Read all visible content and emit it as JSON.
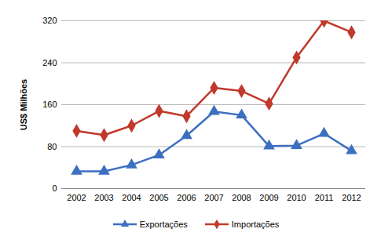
{
  "chart_data": {
    "type": "line",
    "y_label": "US$ Milhões",
    "categories": [
      "2002",
      "2003",
      "2004",
      "2005",
      "2006",
      "2007",
      "2008",
      "2009",
      "2010",
      "2011",
      "2012"
    ],
    "series": [
      {
        "name": "Exportações",
        "color": "#3d6fc0",
        "marker": "triangle",
        "line_style": "solid",
        "values": [
          33,
          33,
          45,
          64,
          101,
          147,
          140,
          81,
          82,
          105,
          72
        ]
      },
      {
        "name": "Importações",
        "color": "#c0392b",
        "marker": "diamond",
        "line_style": "solid",
        "values": [
          110,
          102,
          120,
          148,
          138,
          192,
          186,
          162,
          250,
          320,
          298
        ]
      }
    ],
    "ylim": [
      0,
      320
    ],
    "yticks": [
      0,
      80,
      160,
      240,
      320
    ],
    "grid": true,
    "legend": "bottom"
  }
}
